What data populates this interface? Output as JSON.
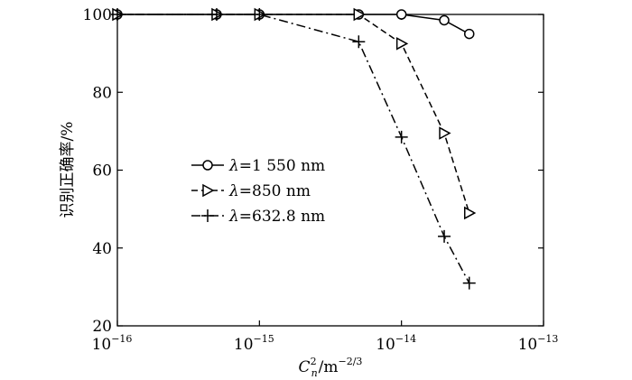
{
  "chart_data": {
    "type": "line",
    "x_scale": "log",
    "xlim": [
      1e-16,
      1e-13
    ],
    "ylim": [
      20,
      100
    ],
    "x_ticks": [
      {
        "value": 1e-16,
        "base": "10",
        "exp": "−16"
      },
      {
        "value": 1e-15,
        "base": "10",
        "exp": "−15"
      },
      {
        "value": 1e-14,
        "base": "10",
        "exp": "−14"
      },
      {
        "value": 1e-13,
        "base": "10",
        "exp": "−13"
      }
    ],
    "y_ticks": [
      {
        "value": 20,
        "label": "20"
      },
      {
        "value": 40,
        "label": "40"
      },
      {
        "value": 60,
        "label": "60"
      },
      {
        "value": 80,
        "label": "80"
      },
      {
        "value": 100,
        "label": "100"
      }
    ],
    "ylabel": "识别正确率/%",
    "xlabel": {
      "base": "C",
      "sup": "2",
      "sub": "n",
      "rest": "/m",
      "rest_sup": "−2/3"
    },
    "grid": false,
    "legend_position": "center-left",
    "series": [
      {
        "name_symbol": "λ",
        "name_rest": "=1 550 nm",
        "marker": "circle",
        "dash": "solid",
        "x": [
          1e-16,
          5e-16,
          1e-15,
          5e-15,
          1e-14,
          2e-14,
          3e-14
        ],
        "y": [
          100,
          100,
          100,
          100,
          100,
          98.5,
          95
        ]
      },
      {
        "name_symbol": "λ",
        "name_rest": "=850 nm",
        "marker": "triangle-right",
        "dash": "dashed",
        "x": [
          1e-16,
          5e-16,
          1e-15,
          5e-15,
          1e-14,
          2e-14,
          3e-14
        ],
        "y": [
          100,
          100,
          100,
          100,
          92.5,
          69.5,
          49
        ]
      },
      {
        "name_symbol": "λ",
        "name_rest": "=632.8 nm",
        "marker": "plus",
        "dash": "dashdot",
        "x": [
          1e-16,
          5e-16,
          1e-15,
          5e-15,
          1e-14,
          2e-14,
          3e-14
        ],
        "y": [
          100,
          100,
          100,
          93,
          68.5,
          43,
          31
        ]
      }
    ]
  }
}
